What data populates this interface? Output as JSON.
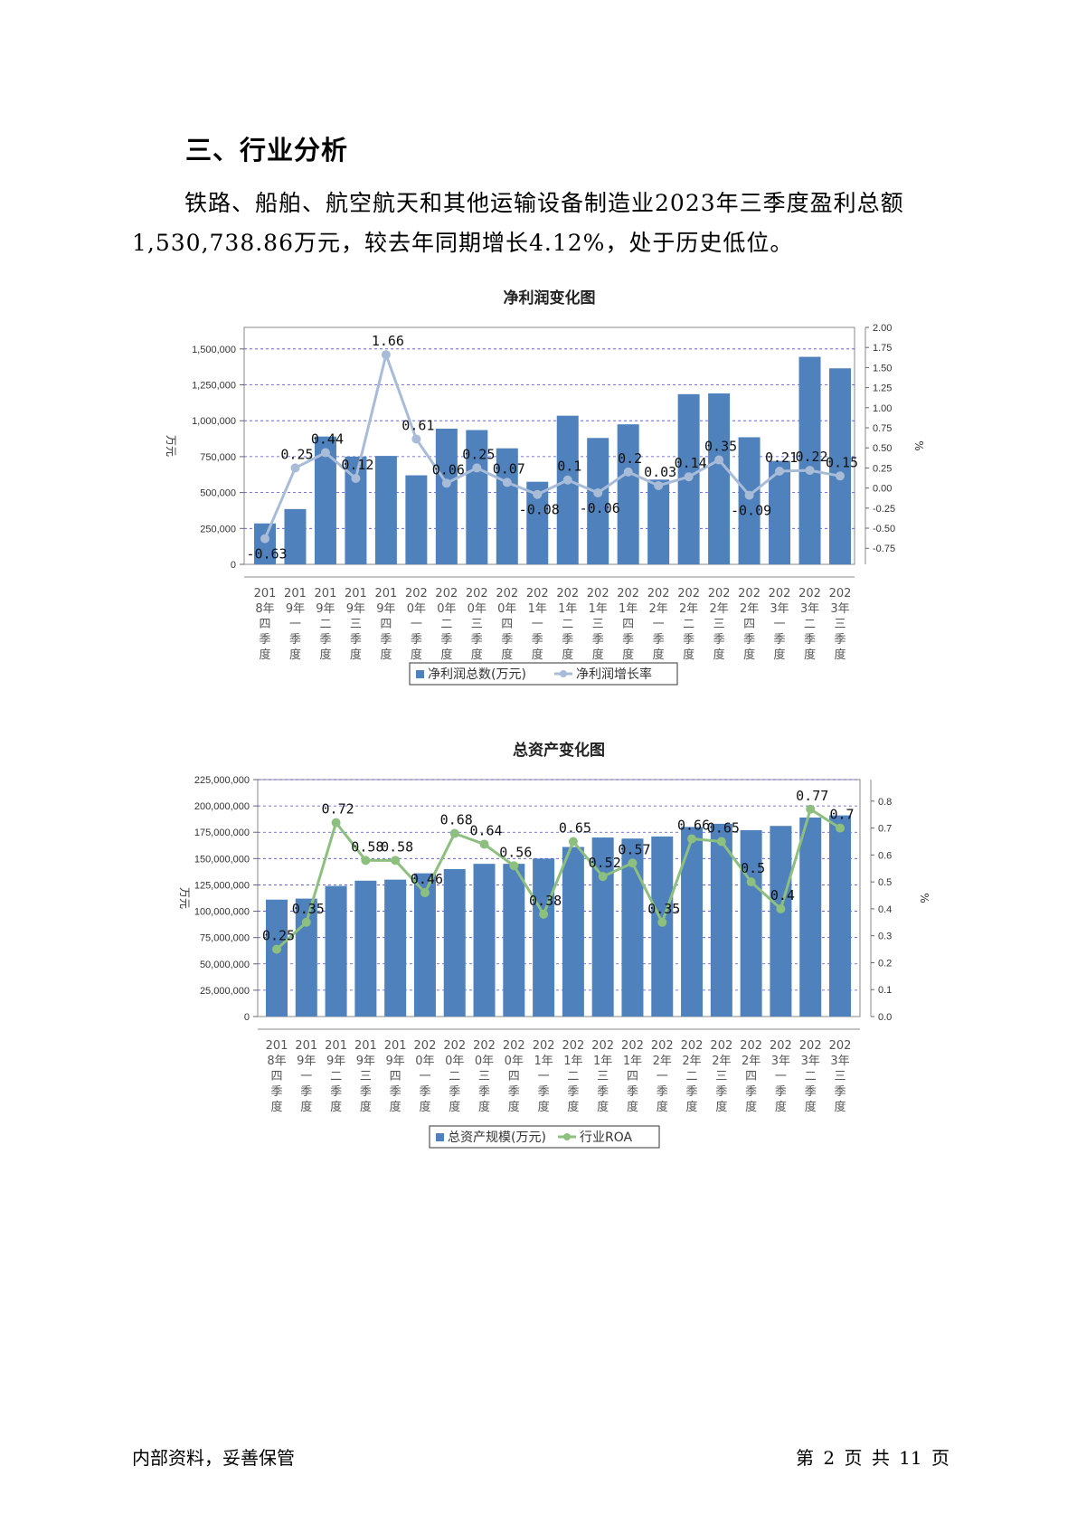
{
  "section": {
    "title": "三、行业分析"
  },
  "paragraph": {
    "line1": "铁路、船舶、航空航天和其他运输设备制造业2023年三季度盈利总额",
    "line2": "1,530,738.86万元，较去年同期增长4.12%，处于历史低位。"
  },
  "chart_data": [
    {
      "type": "bar",
      "title": "净利润变化图",
      "ylabel": "万元",
      "y2label": "%",
      "ylim": [
        0,
        1650000
      ],
      "y2lim": [
        -0.95,
        2.0
      ],
      "yticks": [
        "0",
        "250,000",
        "500,000",
        "750,000",
        "1,000,000",
        "1,250,000",
        "1,500,000"
      ],
      "y2ticks": [
        "-0.75",
        "-0.50",
        "-0.25",
        "0.00",
        "0.25",
        "0.50",
        "0.75",
        "1.00",
        "1.25",
        "1.50",
        "1.75",
        "2.00"
      ],
      "grid": true,
      "legend_position": "bottom",
      "categories": [
        "2018年四季度",
        "2019年一季度",
        "2019年二季度",
        "2019年三季度",
        "2019年四季度",
        "2020年一季度",
        "2020年二季度",
        "2020年三季度",
        "2020年四季度",
        "2021年一季度",
        "2021年二季度",
        "2021年三季度",
        "2021年四季度",
        "2022年一季度",
        "2022年二季度",
        "2022年三季度",
        "2022年四季度",
        "2023年一季度",
        "2023年二季度",
        "2023年三季度"
      ],
      "series": [
        {
          "name": "净利润总数(万元)",
          "type": "bar",
          "color": "#4f81bd",
          "values": [
            285000,
            385000,
            890000,
            750000,
            755000,
            620000,
            945000,
            935000,
            808000,
            575000,
            1035000,
            880000,
            975000,
            590000,
            1185000,
            1190000,
            885000,
            720000,
            1445000,
            1365000
          ]
        },
        {
          "name": "净利润增长率",
          "type": "line",
          "color": "#a8bcd8",
          "axis": "right",
          "values": [
            -0.63,
            0.25,
            0.44,
            0.12,
            1.66,
            0.61,
            0.06,
            0.25,
            0.07,
            -0.08,
            0.1,
            -0.06,
            0.2,
            0.03,
            0.14,
            0.35,
            -0.09,
            0.21,
            0.22,
            0.15
          ]
        }
      ],
      "point_labels": [
        "-0.63",
        "0.25",
        "0.44",
        "0.12",
        "1.66",
        "0.61",
        "0.06",
        "0.25",
        "0.07",
        "-0.08",
        "0.1",
        "-0.06",
        "0.2",
        "0.03",
        "0.14",
        "0.35",
        "-0.09",
        "0.21",
        "0.22",
        "0.15"
      ]
    },
    {
      "type": "bar",
      "title": "总资产变化图",
      "ylabel": "万元",
      "y2label": "%",
      "ylim": [
        0,
        225000000
      ],
      "y2lim": [
        0,
        0.88
      ],
      "yticks": [
        "0",
        "25,000,000",
        "50,000,000",
        "75,000,000",
        "100,000,000",
        "125,000,000",
        "150,000,000",
        "175,000,000",
        "200,000,000",
        "225,000,000"
      ],
      "y2ticks": [
        "0.0",
        "0.1",
        "0.2",
        "0.3",
        "0.4",
        "0.5",
        "0.6",
        "0.7",
        "0.8"
      ],
      "grid": true,
      "legend_position": "bottom",
      "categories": [
        "2018年四季度",
        "2019年一季度",
        "2019年二季度",
        "2019年三季度",
        "2019年四季度",
        "2020年一季度",
        "2020年二季度",
        "2020年三季度",
        "2020年四季度",
        "2021年一季度",
        "2021年二季度",
        "2021年三季度",
        "2021年四季度",
        "2022年一季度",
        "2022年二季度",
        "2022年三季度",
        "2022年四季度",
        "2023年一季度",
        "2023年二季度",
        "2023年三季度"
      ],
      "series": [
        {
          "name": "总资产规模(万元)",
          "type": "bar",
          "color": "#4f81bd",
          "values": [
            111000000,
            112000000,
            124000000,
            129000000,
            130000000,
            136000000,
            140000000,
            145000000,
            145000000,
            150000000,
            161000000,
            170000000,
            169000000,
            171000000,
            180000000,
            183000000,
            177000000,
            181000000,
            189000000,
            191000000
          ]
        },
        {
          "name": "行业ROA",
          "type": "line",
          "color": "#8dbf7f",
          "axis": "right",
          "values": [
            0.25,
            0.35,
            0.72,
            0.58,
            0.58,
            0.46,
            0.68,
            0.64,
            0.56,
            0.38,
            0.65,
            0.52,
            0.57,
            0.35,
            0.66,
            0.65,
            0.5,
            0.4,
            0.77,
            0.7
          ]
        }
      ],
      "point_labels": [
        "0.25",
        "0.35",
        "0.72",
        "0.58",
        "0.58",
        "0.46",
        "0.68",
        "0.64",
        "0.56",
        "0.38",
        "0.65",
        "0.52",
        "0.57",
        "0.35",
        "0.66",
        "0.65",
        "0.5",
        "0.4",
        "0.77",
        "0.7"
      ]
    }
  ],
  "footer": {
    "left": "内部资料，妥善保管",
    "right": "第 2 页  共 11 页"
  }
}
